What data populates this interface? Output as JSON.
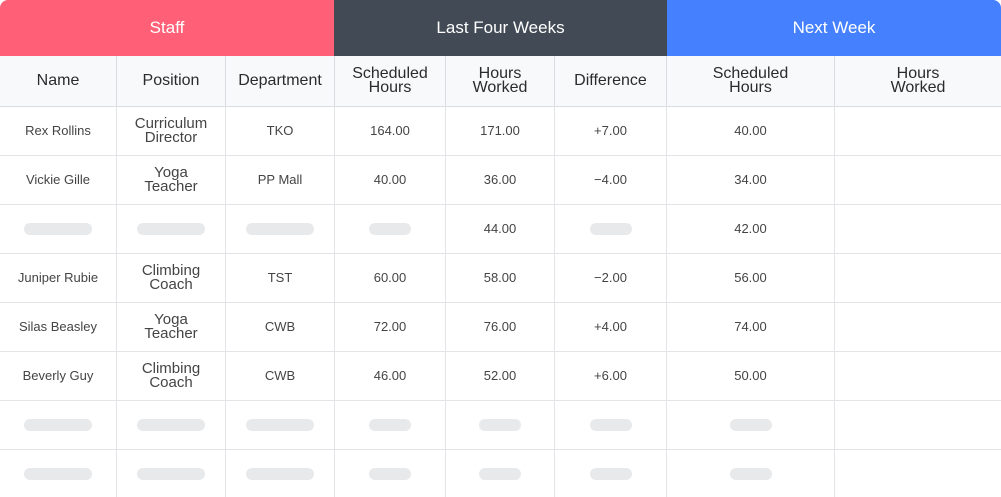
{
  "groups": [
    {
      "label": "Staff",
      "color": "#ff6077"
    },
    {
      "label": "Last Four Weeks",
      "color": "#414a55"
    },
    {
      "label": "Next Week",
      "color": "#4580ff"
    }
  ],
  "columns": {
    "name": "Name",
    "position": "Position",
    "department": "Department",
    "sched_last": "Scheduled Hours",
    "worked_last": "Hours Worked",
    "difference": "Difference",
    "sched_next": "Scheduled Hours",
    "worked_next": "Hours Worked"
  },
  "rows": [
    {
      "name": "Rex Rollins",
      "position": "Curriculum Director",
      "department": "TKO",
      "sched_last": "164.00",
      "worked_last": "171.00",
      "difference": "+7.00",
      "sched_next": "40.00",
      "worked_next": ""
    },
    {
      "name": "Vickie Gille",
      "position": "Yoga Teacher",
      "department": "PP Mall",
      "sched_last": "40.00",
      "worked_last": "36.00",
      "difference": "−4.00",
      "sched_next": "34.00",
      "worked_next": ""
    },
    {
      "name": "",
      "position": "",
      "department": "",
      "sched_last": "",
      "worked_last": "44.00",
      "difference": "",
      "sched_next": "42.00",
      "worked_next": ""
    },
    {
      "name": "Juniper Rubie",
      "position": "Climbing Coach",
      "department": "TST",
      "sched_last": "60.00",
      "worked_last": "58.00",
      "difference": "−2.00",
      "sched_next": "56.00",
      "worked_next": ""
    },
    {
      "name": "Silas Beasley",
      "position": "Yoga Teacher",
      "department": "CWB",
      "sched_last": "72.00",
      "worked_last": "76.00",
      "difference": "+4.00",
      "sched_next": "74.00",
      "worked_next": ""
    },
    {
      "name": "Beverly Guy",
      "position": "Climbing Coach",
      "department": "CWB",
      "sched_last": "46.00",
      "worked_last": "52.00",
      "difference": "+6.00",
      "sched_next": "50.00",
      "worked_next": ""
    },
    {
      "name": "",
      "position": "",
      "department": "",
      "sched_last": "",
      "worked_last": "",
      "difference": "",
      "sched_next": "",
      "worked_next": ""
    },
    {
      "name": "",
      "position": "",
      "department": "",
      "sched_last": "",
      "worked_last": "",
      "difference": "",
      "sched_next": "",
      "worked_next": ""
    }
  ]
}
